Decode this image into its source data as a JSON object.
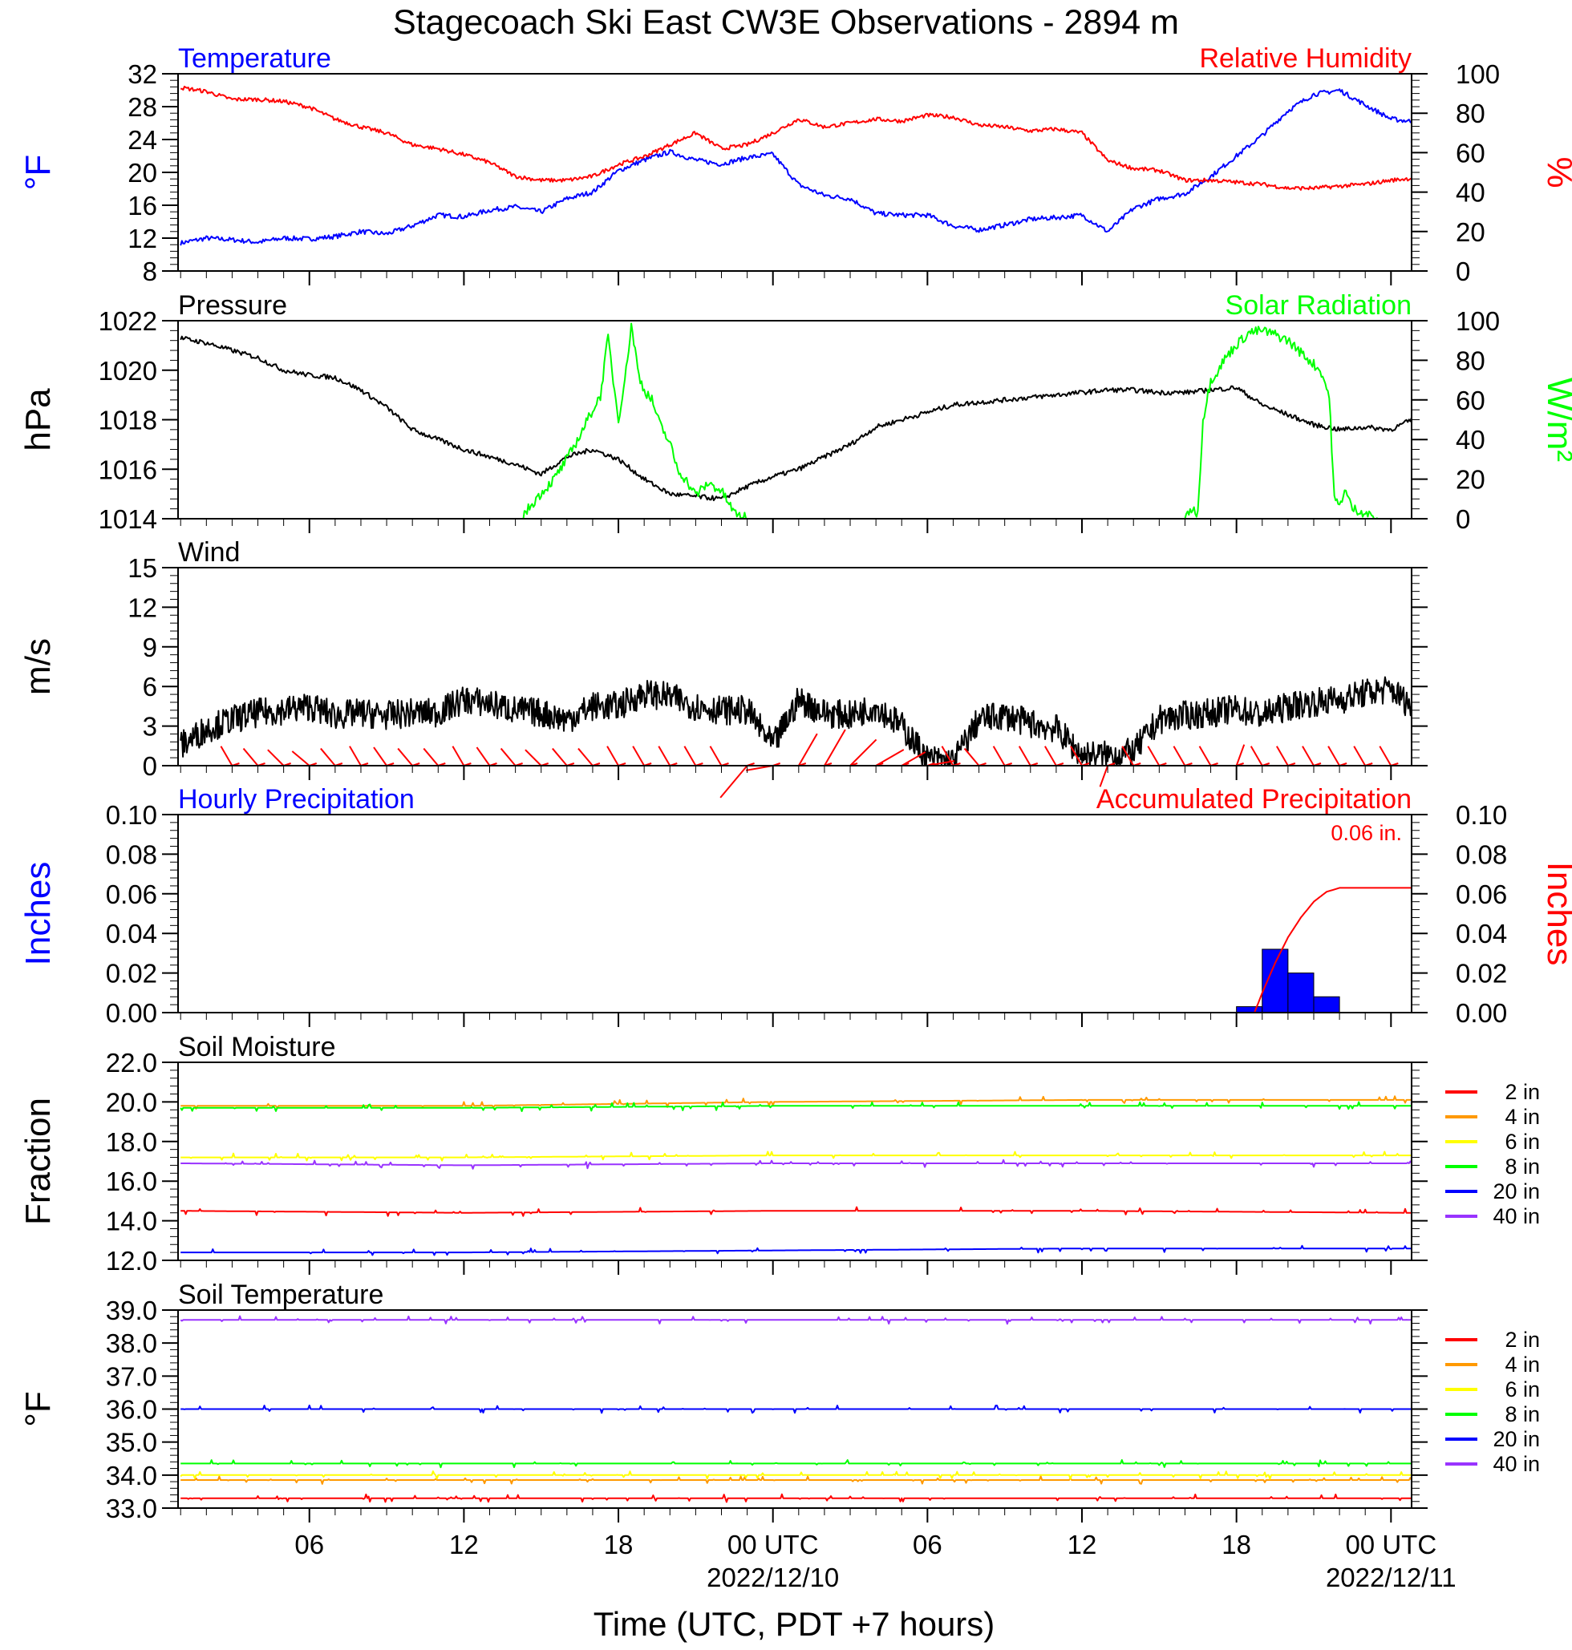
{
  "title": "Stagecoach Ski East CW3E Observations - 2894 m",
  "x_axis": {
    "label": "Time (UTC, PDT +7 hours)",
    "ticks": [
      {
        "hour": 6,
        "label": "06",
        "sub": ""
      },
      {
        "hour": 12,
        "label": "12",
        "sub": ""
      },
      {
        "hour": 18,
        "label": "18",
        "sub": ""
      },
      {
        "hour": 24,
        "label": "00 UTC",
        "sub": "2022/12/10"
      },
      {
        "hour": 30,
        "label": "06",
        "sub": ""
      },
      {
        "hour": 36,
        "label": "12",
        "sub": ""
      },
      {
        "hour": 42,
        "label": "18",
        "sub": ""
      },
      {
        "hour": 48,
        "label": "00 UTC",
        "sub": "2022/12/11"
      }
    ],
    "range_hours": [
      0.9,
      48.8
    ]
  },
  "chart_data": [
    {
      "type": "line",
      "id": "temp_rh",
      "left_title": "Temperature",
      "right_title": "Relative Humidity",
      "ylabel_left": "°F",
      "ylabel_right": "%",
      "ylim_left": [
        8,
        32
      ],
      "ylim_right": [
        0,
        100
      ],
      "yticks_left": [
        "8",
        "12",
        "16",
        "20",
        "24",
        "28",
        "32"
      ],
      "yticks_right": [
        "0",
        "20",
        "40",
        "60",
        "80",
        "100"
      ],
      "x": [
        1,
        2,
        3,
        4,
        5,
        6,
        7,
        8,
        9,
        10,
        11,
        12,
        13,
        14,
        15,
        16,
        17,
        18,
        19,
        20,
        21,
        22,
        23,
        24,
        25,
        26,
        27,
        28,
        29,
        30,
        31,
        32,
        33,
        34,
        35,
        36,
        37,
        38,
        39,
        40,
        41,
        42,
        43,
        44,
        45,
        46,
        47,
        48,
        48.8
      ],
      "series": [
        {
          "name": "Temperature",
          "axis": "left",
          "color": "#0000ff",
          "values": [
            11.4,
            12.0,
            11.8,
            11.5,
            12.0,
            11.9,
            12.2,
            12.8,
            12.5,
            13.5,
            14.8,
            14.6,
            15.4,
            15.8,
            15.2,
            16.8,
            17.6,
            20.2,
            21.5,
            22.5,
            21.5,
            21.0,
            21.8,
            22.2,
            18.5,
            17.2,
            16.8,
            15.0,
            14.8,
            14.8,
            13.5,
            13.0,
            13.6,
            14.3,
            14.5,
            14.8,
            12.8,
            15.6,
            16.8,
            17.4,
            19.5,
            22.0,
            24.5,
            27.5,
            29.5,
            30.0,
            28.2,
            26.5,
            26.2
          ]
        },
        {
          "name": "Relative Humidity",
          "axis": "right",
          "color": "#ff0000",
          "values": [
            93,
            91,
            87,
            87,
            86,
            83,
            77,
            73,
            70,
            64,
            62,
            59,
            55,
            48,
            46,
            46,
            48,
            54,
            58,
            64,
            70,
            62,
            64,
            70,
            77,
            73,
            75,
            77,
            76,
            79,
            78,
            74,
            73,
            71,
            72,
            70,
            56,
            52,
            51,
            46,
            46,
            45,
            44,
            42,
            42,
            43,
            44,
            46,
            47
          ]
        }
      ]
    },
    {
      "type": "line",
      "id": "pressure_solar",
      "left_title": "Pressure",
      "right_title": "Solar Radiation",
      "ylabel_left": "hPa",
      "ylabel_right": "W/m²",
      "ylim_left": [
        1014,
        1022
      ],
      "ylim_right": [
        0,
        100
      ],
      "yticks_left": [
        "1014",
        "1016",
        "1018",
        "1020",
        "1022"
      ],
      "yticks_right": [
        "0",
        "20",
        "40",
        "60",
        "80",
        "100"
      ],
      "series": [
        {
          "name": "Pressure",
          "axis": "left",
          "color": "#000000",
          "x": [
            1,
            2,
            3,
            4,
            5,
            6,
            7,
            8,
            9,
            10,
            11,
            12,
            13,
            14,
            15,
            16,
            17,
            18,
            19,
            20,
            21,
            22,
            23,
            24,
            25,
            26,
            27,
            28,
            29,
            30,
            31,
            32,
            33,
            34,
            35,
            36,
            37,
            38,
            39,
            40,
            41,
            42,
            43,
            44,
            45,
            46,
            47,
            48,
            48.8
          ],
          "values": [
            1021.3,
            1021.1,
            1020.8,
            1020.5,
            1020.0,
            1019.8,
            1019.7,
            1019.2,
            1018.5,
            1017.6,
            1017.2,
            1016.8,
            1016.5,
            1016.2,
            1015.8,
            1016.5,
            1016.8,
            1016.4,
            1015.6,
            1015.0,
            1014.9,
            1014.8,
            1015.3,
            1015.7,
            1016.0,
            1016.5,
            1017.0,
            1017.7,
            1018.0,
            1018.3,
            1018.6,
            1018.7,
            1018.8,
            1018.9,
            1019.0,
            1019.1,
            1019.2,
            1019.2,
            1019.1,
            1019.1,
            1019.2,
            1019.3,
            1018.6,
            1018.2,
            1017.8,
            1017.6,
            1017.7,
            1017.6,
            1018.0
          ]
        },
        {
          "name": "Solar Radiation",
          "axis": "right",
          "color": "#00ff00",
          "x": [
            1,
            14.2,
            14.8,
            15.5,
            16,
            16.5,
            17,
            17.3,
            17.6,
            17.8,
            18,
            18.3,
            18.5,
            18.8,
            19,
            19.3,
            19.6,
            20,
            20.3,
            20.6,
            21,
            21.5,
            22,
            22.5,
            23,
            23.6,
            24,
            40,
            40.2,
            40.5,
            40.7,
            41,
            41.3,
            41.5,
            42,
            42.5,
            43,
            43.5,
            44,
            44.5,
            45,
            45.3,
            45.6,
            45.8,
            46,
            46.2,
            46.5,
            46.8,
            47.5,
            49
          ],
          "values": [
            0,
            0,
            10,
            20,
            30,
            42,
            55,
            62,
            92,
            70,
            50,
            75,
            98,
            72,
            65,
            60,
            48,
            38,
            25,
            20,
            12,
            18,
            14,
            3,
            0,
            0,
            0,
            0,
            5,
            3,
            50,
            70,
            75,
            80,
            88,
            94,
            95,
            93,
            90,
            84,
            78,
            74,
            62,
            10,
            6,
            15,
            5,
            4,
            0,
            0
          ]
        }
      ]
    },
    {
      "type": "line",
      "id": "wind",
      "left_title": "Wind",
      "ylabel_left": "m/s",
      "ylim_left": [
        0,
        15
      ],
      "yticks_left": [
        "0",
        "3",
        "6",
        "9",
        "12",
        "15"
      ],
      "series": [
        {
          "name": "Wind",
          "color": "#000000",
          "x": [
            1,
            2,
            3,
            4,
            5,
            6,
            7,
            8,
            9,
            10,
            11,
            12,
            13,
            14,
            15,
            16,
            17,
            18,
            19,
            20,
            21,
            22,
            23,
            24,
            25,
            26,
            27,
            28,
            29,
            30,
            31,
            32,
            33,
            34,
            35,
            36,
            37,
            38,
            39,
            40,
            41,
            42,
            43,
            44,
            45,
            46,
            47,
            48,
            48.8
          ],
          "values": [
            1.5,
            2.8,
            3.5,
            4.0,
            4.2,
            4.5,
            3.8,
            4.0,
            3.8,
            4.0,
            4.0,
            5.0,
            4.7,
            4.2,
            4.0,
            3.5,
            4.5,
            4.5,
            5.5,
            5.2,
            4.5,
            4.2,
            4.2,
            1.5,
            5.0,
            4.0,
            3.8,
            4.5,
            3.0,
            0.5,
            0.3,
            3.5,
            3.8,
            3.2,
            2.8,
            0.8,
            0.8,
            1.0,
            3.5,
            3.8,
            4.0,
            4.3,
            3.8,
            4.5,
            4.8,
            5.0,
            5.5,
            5.8,
            4.5
          ]
        },
        {
          "name": "Wind Barbs",
          "color": "#ff0000",
          "x": [
            3,
            4,
            5,
            6,
            7,
            8,
            9,
            10,
            11,
            12,
            13,
            14,
            15,
            16,
            17,
            18,
            19,
            20,
            21,
            22,
            23,
            24,
            25,
            26,
            27,
            28,
            29,
            30,
            31,
            32,
            33,
            34,
            35,
            36,
            37,
            38,
            39,
            40,
            41,
            42,
            43,
            44,
            45,
            46,
            47,
            48
          ],
          "speed": [
            2,
            2,
            2,
            2,
            2,
            2,
            2,
            2,
            2,
            2,
            2,
            2,
            2,
            2,
            2,
            2,
            2,
            2,
            2,
            2,
            6,
            3,
            5,
            6,
            5,
            4,
            3,
            3,
            2,
            2,
            2,
            2,
            2,
            2,
            2,
            2,
            2,
            2,
            2,
            2,
            2,
            2,
            2,
            2,
            2,
            2
          ],
          "direction": [
            330,
            320,
            315,
            310,
            320,
            330,
            325,
            320,
            320,
            330,
            325,
            320,
            315,
            320,
            320,
            330,
            330,
            330,
            330,
            330,
            220,
            260,
            30,
            30,
            45,
            60,
            60,
            80,
            330,
            320,
            330,
            330,
            330,
            330,
            200,
            330,
            330,
            330,
            330,
            20,
            330,
            330,
            330,
            330,
            330,
            330
          ]
        }
      ]
    },
    {
      "type": "bar",
      "id": "precip",
      "left_title": "Hourly Precipitation",
      "right_title": "Accumulated Precipitation",
      "annotation": "0.06 in.",
      "ylabel_left": "Inches",
      "ylabel_right": "Inches",
      "ylim_left": [
        0,
        0.1
      ],
      "ylim_right": [
        0,
        0.1
      ],
      "yticks_left": [
        "0.00",
        "0.02",
        "0.04",
        "0.06",
        "0.08",
        "0.10"
      ],
      "yticks_right": [
        "0.00",
        "0.02",
        "0.04",
        "0.06",
        "0.08",
        "0.10"
      ],
      "series": [
        {
          "name": "Hourly Precipitation",
          "type": "bar",
          "color": "#0000ff",
          "x": [
            42,
            43,
            44,
            45
          ],
          "width_hours": 1,
          "values": [
            0.003,
            0.032,
            0.02,
            0.008
          ]
        },
        {
          "name": "Accumulated Precipitation",
          "type": "line",
          "color": "#ff0000",
          "x": [
            1,
            42.7,
            43,
            43.5,
            44,
            44.5,
            45,
            45.5,
            46,
            48.8
          ],
          "values": [
            0,
            0,
            0.01,
            0.025,
            0.038,
            0.048,
            0.056,
            0.061,
            0.063,
            0.063
          ]
        }
      ]
    },
    {
      "type": "line",
      "id": "soil_moisture",
      "left_title": "Soil Moisture",
      "ylabel_left": "Fraction",
      "ylim_left": [
        12.0,
        22.0
      ],
      "yticks_left": [
        "12.0",
        "14.0",
        "16.0",
        "18.0",
        "20.0",
        "22.0"
      ],
      "legend": "right",
      "series": [
        {
          "name": "2 in",
          "color": "#ff0000",
          "values": [
            14.5,
            14.4,
            14.5,
            14.5,
            14.4
          ]
        },
        {
          "name": "4 in",
          "color": "#ff9900",
          "values": [
            19.8,
            19.8,
            20.0,
            20.1,
            20.1
          ]
        },
        {
          "name": "6 in",
          "color": "#ffff00",
          "values": [
            17.2,
            17.2,
            17.3,
            17.3,
            17.3
          ]
        },
        {
          "name": "8 in",
          "color": "#00ff00",
          "values": [
            19.7,
            19.7,
            19.8,
            19.8,
            19.8
          ]
        },
        {
          "name": "20 in",
          "color": "#0000ff",
          "values": [
            12.4,
            12.4,
            12.5,
            12.6,
            12.6
          ]
        },
        {
          "name": "40 in",
          "color": "#9933ff",
          "values": [
            16.9,
            16.8,
            16.9,
            16.9,
            16.9
          ]
        }
      ],
      "x": [
        1,
        12,
        24,
        36,
        48.8
      ]
    },
    {
      "type": "line",
      "id": "soil_temperature",
      "left_title": "Soil Temperature",
      "ylabel_left": "°F",
      "ylim_left": [
        33.0,
        39.0
      ],
      "yticks_left": [
        "33.0",
        "34.0",
        "35.0",
        "36.0",
        "37.0",
        "38.0",
        "39.0"
      ],
      "legend": "right",
      "series": [
        {
          "name": "2 in",
          "color": "#ff0000",
          "values": [
            33.3,
            33.3,
            33.3
          ]
        },
        {
          "name": "4 in",
          "color": "#ff9900",
          "values": [
            33.85,
            33.85,
            33.85
          ]
        },
        {
          "name": "6 in",
          "color": "#ffff00",
          "values": [
            34.0,
            34.0,
            34.0
          ]
        },
        {
          "name": "8 in",
          "color": "#00ff00",
          "values": [
            34.35,
            34.35,
            34.35
          ]
        },
        {
          "name": "20 in",
          "color": "#0000ff",
          "values": [
            36.0,
            36.0,
            36.0
          ]
        },
        {
          "name": "40 in",
          "color": "#9933ff",
          "values": [
            38.7,
            38.7,
            38.7
          ]
        }
      ],
      "x": [
        1,
        24,
        48.8
      ]
    }
  ]
}
